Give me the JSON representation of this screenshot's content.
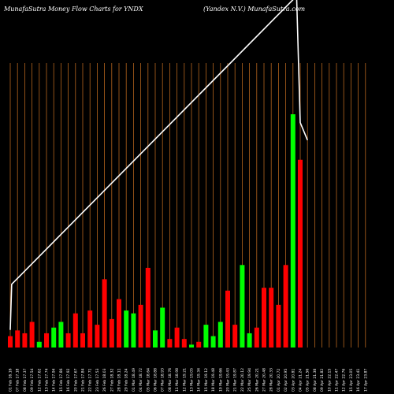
{
  "header": {
    "title_left": "MunafaSutra  Money Flow  Charts for YNDX",
    "title_right": "(Yandex N.V.) MunafaSutra.com"
  },
  "colors": {
    "background": "#000000",
    "grid": "#b5651d",
    "up": "#00ff00",
    "down": "#ff0000",
    "line": "#ffffff"
  },
  "chart_data": {
    "type": "bar",
    "title": "MunafaSutra  Money Flow  Charts for YNDX",
    "subtitle": "(Yandex N.V.) MunafaSutra.com",
    "xlabel": "",
    "ylabel": "",
    "grid": true,
    "categories": [
      "01 Feb 2024",
      "07 Feb 2024",
      "08 Feb 2024",
      "09 Feb 2024",
      "12 Feb 2024",
      "13 Feb 2024",
      "14 Feb 2024",
      "15 Feb 2024",
      "16 Feb 2024",
      "20 Feb 2024",
      "21 Feb 2024",
      "22 Feb 2024",
      "23 Feb 2024",
      "26 Feb 2024",
      "27 Feb 2024",
      "28 Feb 2024",
      "29 Feb 2024",
      "01 Mar 2024",
      "04 Mar 2024",
      "05 Mar 2024",
      "06 Mar 2024",
      "07 Mar 2024",
      "08 Mar 2024",
      "11 Mar 2024",
      "12 Mar 2024",
      "13 Mar 2024",
      "14 Mar 2024",
      "15 Mar 2024",
      "18 Mar 2024",
      "19 Mar 2024",
      "20 Mar 2024",
      "21 Mar 2024",
      "22 Mar 2024",
      "25 Mar 2024",
      "26 Mar 2024",
      "27 Mar 2024",
      "28 Mar 2024",
      "01 Apr 2024",
      "02 Apr 2024",
      "03 Apr 2024",
      "04 Apr 2024",
      "05 Apr 2024",
      "08 Apr 2024",
      "09 Apr 2024",
      "10 Apr 2024",
      "11 Apr 2024",
      "12 Apr 2024",
      "15 Apr 2024",
      "16 Apr 2024",
      "17 Apr 2024"
    ],
    "x_labels": [
      "01 Feb 16.16",
      "07 Feb 17.18",
      "08 Feb 17.37",
      "09 Feb 17.54",
      "12 Feb 17.62",
      "13 Feb 17.74",
      "14 Feb 17.94",
      "15 Feb 17.86",
      "16 Feb 17.92",
      "20 Feb 17.67",
      "21 Feb 17.84",
      "22 Feb 17.71",
      "23 Feb 17.53",
      "26 Feb 18.03",
      "27 Feb 18.32",
      "28 Feb 18.11",
      "29 Feb 18.24",
      "01 Mar 18.49",
      "04 Mar 18.72",
      "05 Mar 18.64",
      "06 Mar 18.88",
      "07 Mar 18.93",
      "08 Mar 18.76",
      "11 Mar 18.98",
      "12 Mar 19.21",
      "13 Mar 19.05",
      "14 Mar 19.34",
      "15 Mar 19.12",
      "18 Mar 19.48",
      "19 Mar 19.66",
      "20 Mar 19.43",
      "21 Mar 19.87",
      "22 Mar 20.12",
      "25 Mar 19.94",
      "26 Mar 20.21",
      "27 Mar 20.48",
      "28 Mar 20.33",
      "01 Apr 20.72",
      "02 Apr 20.95",
      "03 Apr 20.81",
      "04 Apr 21.24",
      "05 Apr 21.56",
      "08 Apr 21.38",
      "09 Apr 21.82",
      "10 Apr 22.15",
      "11 Apr 22.47",
      "12 Apr 22.76",
      "15 Apr 23.05",
      "16 Apr 23.41",
      "17 Apr 23.87"
    ],
    "series": [
      {
        "values": [
          4,
          6,
          5,
          9,
          2,
          5,
          7,
          9,
          5,
          12,
          5,
          13,
          8,
          24,
          10,
          17,
          13,
          12,
          15,
          28,
          6,
          14,
          3,
          7,
          3,
          1,
          2,
          8,
          4,
          9,
          20,
          8,
          29,
          5,
          7,
          21,
          21,
          15,
          29,
          82,
          66,
          0,
          0,
          0,
          0,
          0,
          0,
          0,
          0,
          0
        ],
        "colors": [
          "down",
          "down",
          "down",
          "down",
          "up",
          "down",
          "up",
          "up",
          "down",
          "down",
          "down",
          "down",
          "down",
          "down",
          "down",
          "down",
          "up",
          "up",
          "down",
          "down",
          "up",
          "up",
          "down",
          "down",
          "down",
          "up",
          "down",
          "up",
          "up",
          "up",
          "down",
          "down",
          "up",
          "up",
          "down",
          "down",
          "down",
          "down",
          "down",
          "up",
          "down",
          "down",
          "down",
          "down",
          "down",
          "down",
          "down",
          "down",
          "down",
          "down"
        ]
      }
    ],
    "price_line": [
      {
        "i": 0,
        "v": 5
      },
      {
        "i": 0.2,
        "v": 18
      },
      {
        "i": 39.5,
        "v": 100
      },
      {
        "i": 40,
        "v": 64
      },
      {
        "i": 41,
        "v": 59
      }
    ]
  }
}
